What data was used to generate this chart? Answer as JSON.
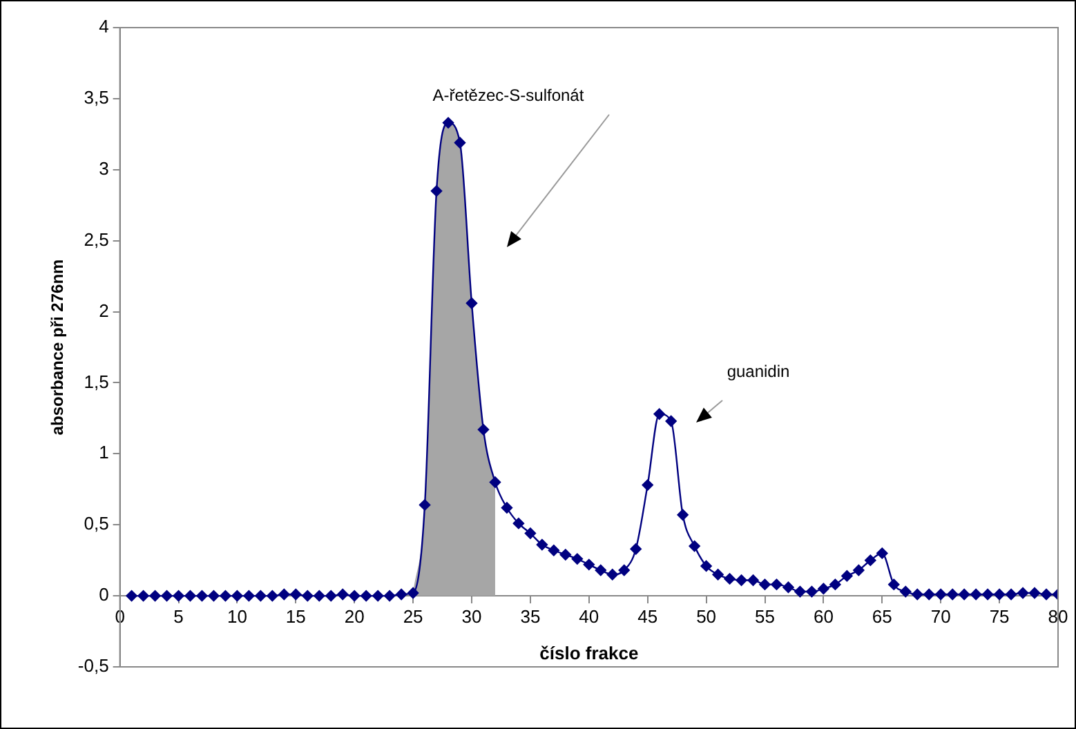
{
  "chart_data": {
    "type": "line",
    "xlabel": "číslo frakce",
    "ylabel": "absorbance při 276nm",
    "xlim": [
      0,
      80
    ],
    "xticks": [
      0,
      5,
      10,
      15,
      20,
      25,
      30,
      35,
      40,
      45,
      50,
      55,
      60,
      65,
      70,
      75,
      80
    ],
    "ylim": [
      -0.5,
      4
    ],
    "yticks": [
      {
        "value": -0.5,
        "label": "-0,5"
      },
      0,
      {
        "value": 0.5,
        "label": "0,5"
      },
      1,
      {
        "value": 1.5,
        "label": "1,5"
      },
      2,
      {
        "value": 2.5,
        "label": "2,5"
      },
      3,
      {
        "value": 3.5,
        "label": "3,5"
      },
      4
    ],
    "grid": false,
    "line_style": "solid",
    "series": [
      {
        "type": "area",
        "color": "#a6a6a6",
        "x": [
          25,
          26,
          27,
          28,
          29,
          30,
          31,
          32
        ],
        "values": [
          0.02,
          0.64,
          2.85,
          3.33,
          3.19,
          2.06,
          1.17,
          0.8
        ]
      },
      {
        "marker": "diamond",
        "color": "#000080",
        "x": [
          1,
          2,
          3,
          4,
          5,
          6,
          7,
          8,
          9,
          10,
          11,
          12,
          13,
          14,
          15,
          16,
          17,
          18,
          19,
          20,
          21,
          22,
          23,
          24,
          25,
          26,
          27,
          28,
          29,
          30,
          31,
          32,
          33,
          34,
          35,
          36,
          37,
          38,
          39,
          40,
          41,
          42,
          43,
          44,
          45,
          46,
          47,
          48,
          49,
          50,
          51,
          52,
          53,
          54,
          55,
          56,
          57,
          58,
          59,
          60,
          61,
          62,
          63,
          64,
          65,
          66,
          67,
          68,
          69,
          70,
          71,
          72,
          73,
          74,
          75,
          76,
          77,
          78,
          79,
          80
        ],
        "values": [
          0,
          0,
          0,
          0,
          0,
          0,
          0,
          0,
          0,
          0,
          0,
          0,
          0,
          0.01,
          0.01,
          0,
          0,
          0,
          0.01,
          0,
          0,
          0,
          0,
          0.01,
          0.02,
          0.64,
          2.85,
          3.33,
          3.19,
          2.06,
          1.17,
          0.8,
          0.62,
          0.51,
          0.44,
          0.36,
          0.32,
          0.29,
          0.26,
          0.22,
          0.18,
          0.15,
          0.18,
          0.33,
          0.78,
          1.28,
          1.23,
          0.57,
          0.35,
          0.21,
          0.15,
          0.12,
          0.11,
          0.11,
          0.08,
          0.08,
          0.06,
          0.03,
          0.03,
          0.05,
          0.08,
          0.14,
          0.18,
          0.25,
          0.3,
          0.08,
          0.03,
          0.01,
          0.01,
          0.01,
          0.01,
          0.01,
          0.01,
          0.01,
          0.01,
          0.01,
          0.02,
          0.02,
          0.01,
          0.01
        ]
      }
    ],
    "annotations": [
      "A-řetězec-S-sulfonát",
      "guanidin"
    ]
  }
}
